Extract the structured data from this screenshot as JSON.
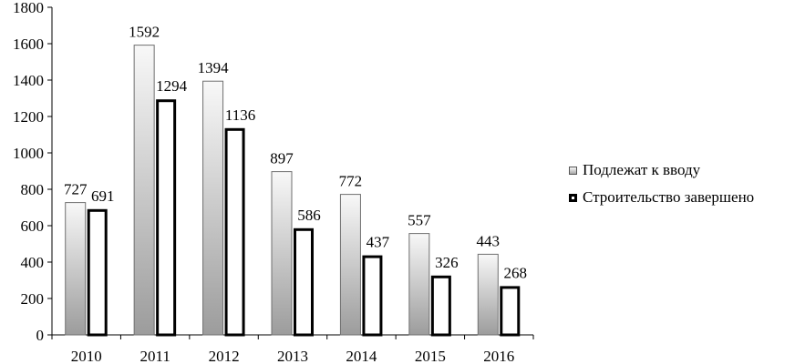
{
  "chart_data": {
    "type": "bar",
    "categories": [
      "2010",
      "2011",
      "2012",
      "2013",
      "2014",
      "2015",
      "2016"
    ],
    "series": [
      {
        "name": "Подлежат к вводу",
        "values": [
          727,
          1592,
          1394,
          897,
          772,
          557,
          443
        ]
      },
      {
        "name": "Строительство завершено",
        "values": [
          691,
          1294,
          1136,
          586,
          437,
          326,
          268
        ]
      }
    ],
    "yticks": [
      "0",
      "200",
      "400",
      "600",
      "800",
      "1000",
      "1200",
      "1400",
      "1600",
      "1800"
    ],
    "ylim": [
      0,
      1800
    ],
    "data_labels": true,
    "grid": false,
    "legend_position": "right"
  }
}
